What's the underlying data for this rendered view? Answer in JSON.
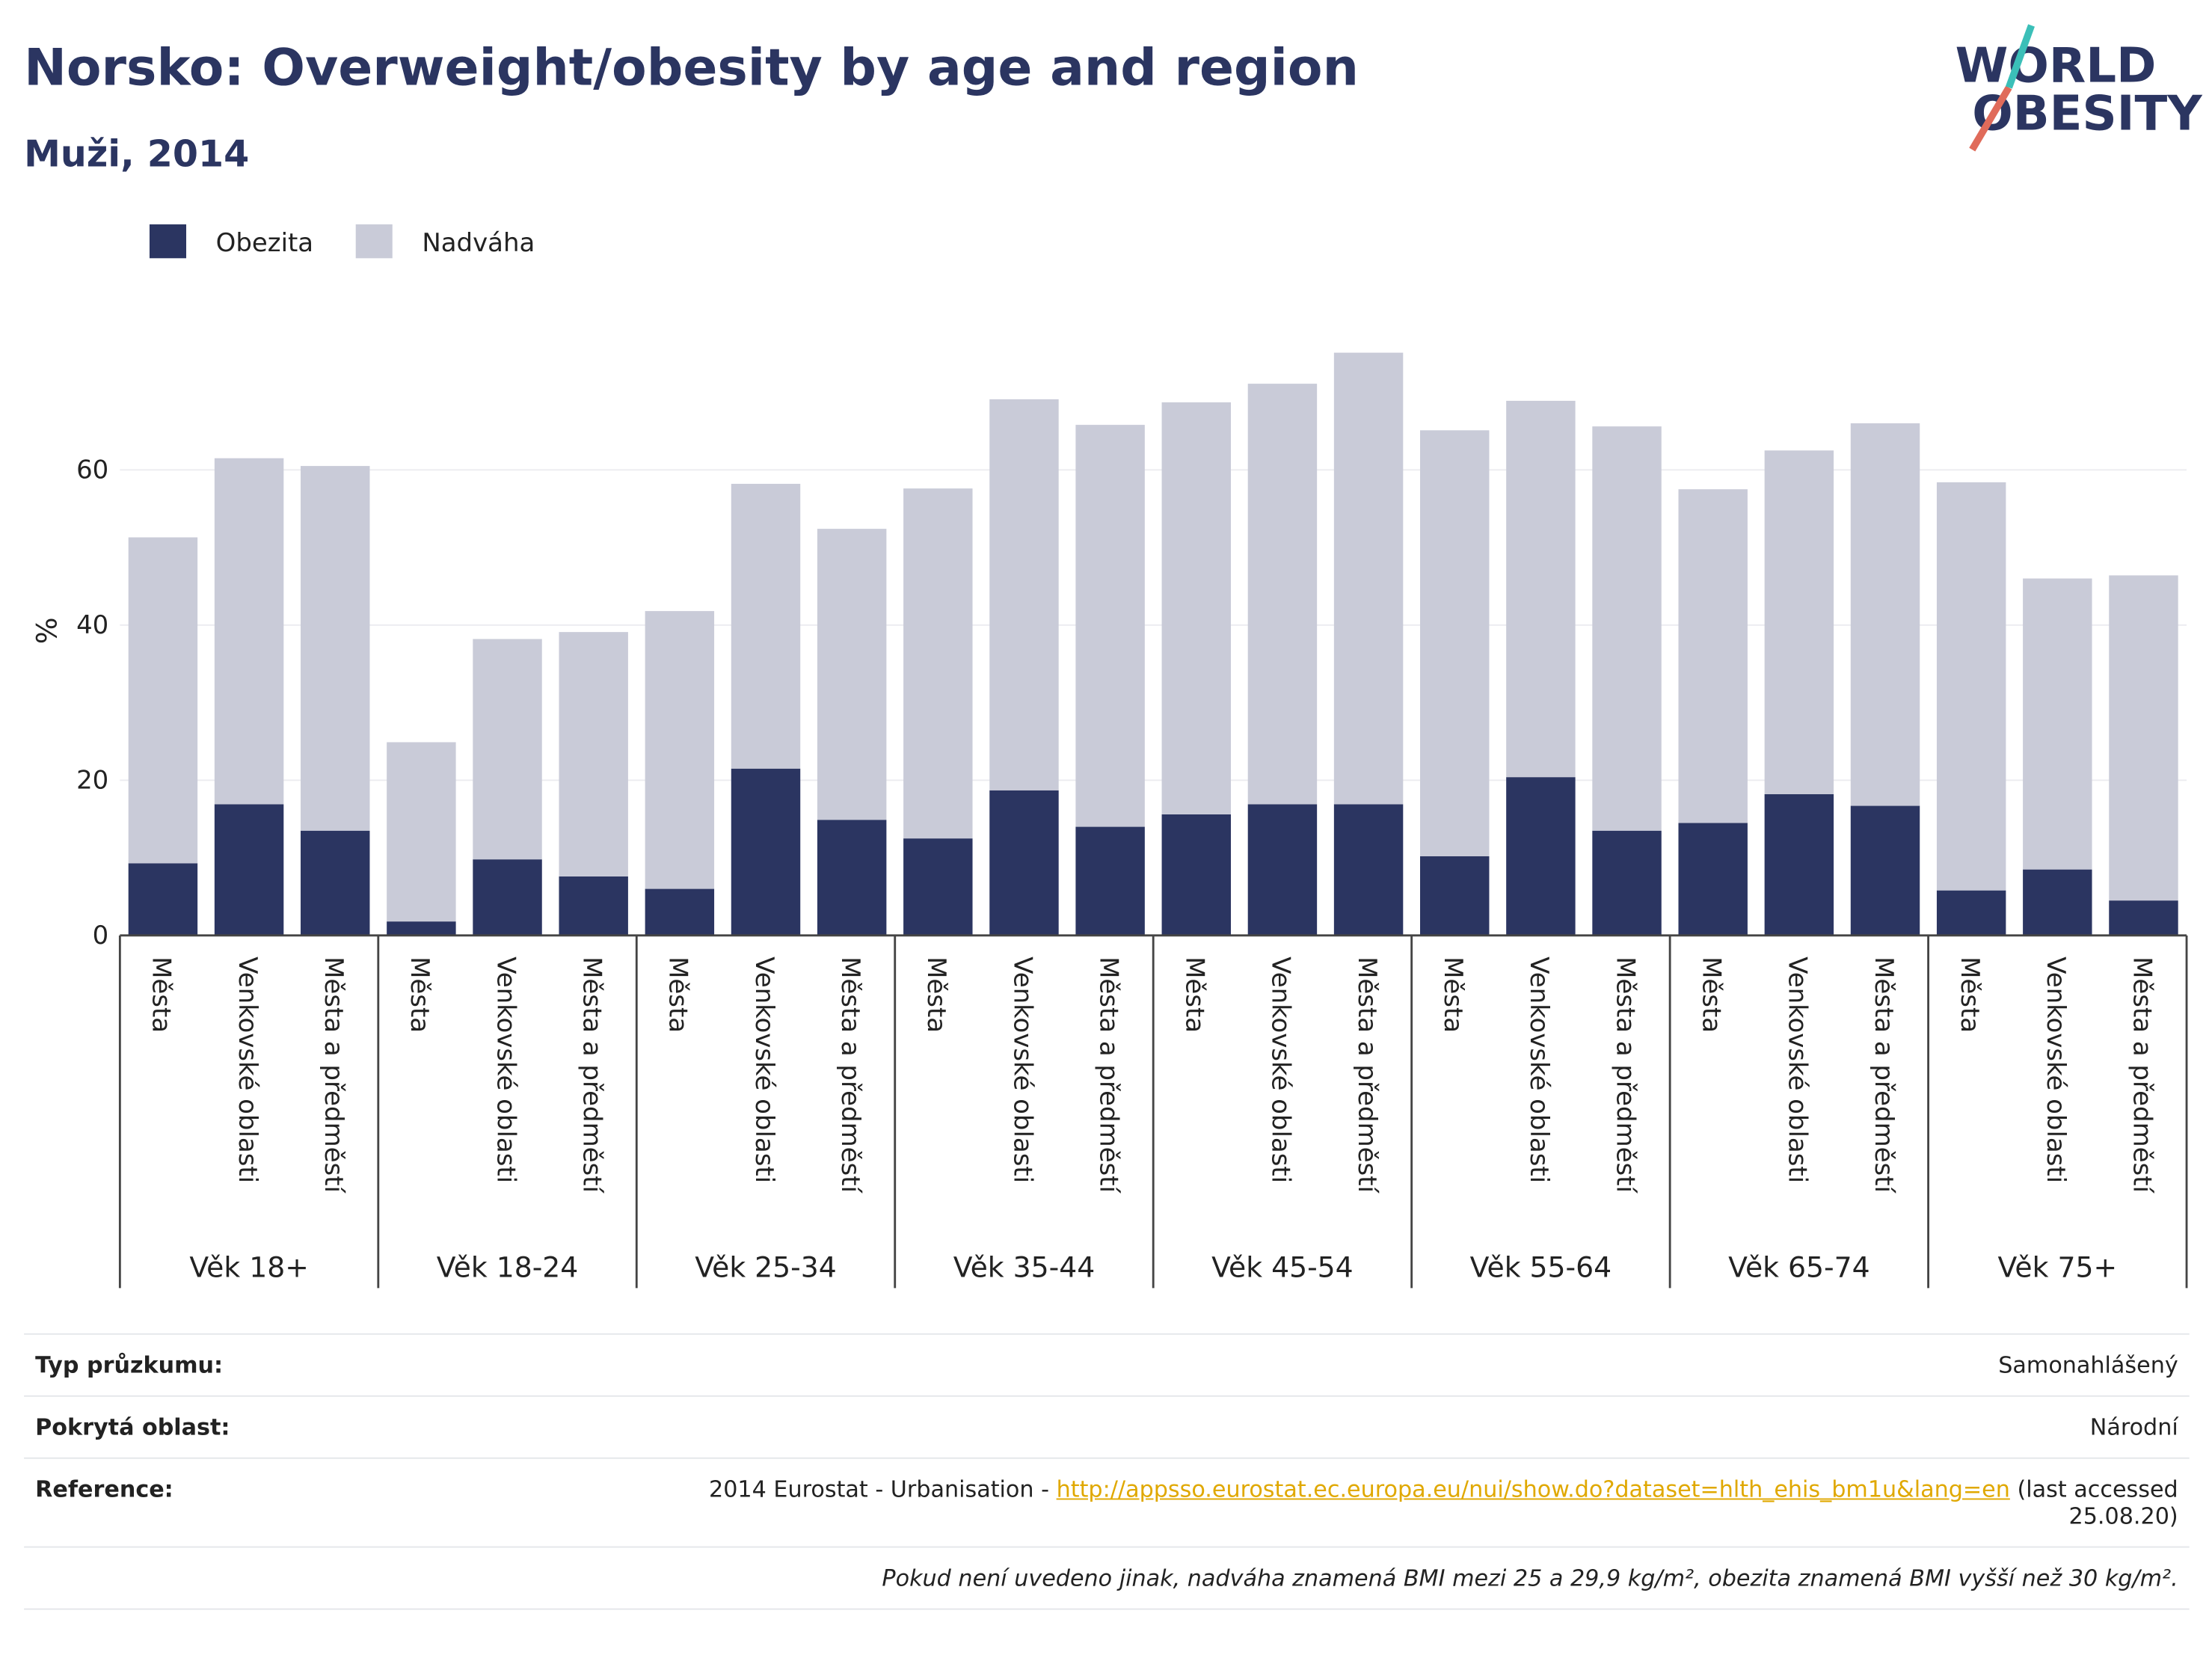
{
  "chart_data": {
    "type": "stacked_bar",
    "title": "Norsko: Overweight/obesity by age and region",
    "subtitle": "Muži, 2014",
    "ylabel": "%",
    "categories": [
      "Města",
      "Venkovské oblasti",
      "Města a předměstí",
      "Města",
      "Venkovské oblasti",
      "Města a předměstí",
      "Města",
      "Venkovské oblasti",
      "Města a předměstí",
      "Města",
      "Venkovské oblasti",
      "Města a předměstí",
      "Města",
      "Venkovské oblasti",
      "Města a předměstí",
      "Města",
      "Venkovské oblasti",
      "Města a předměstí",
      "Města",
      "Venkovské oblasti",
      "Města a předměstí",
      "Města",
      "Venkovské oblasti",
      "Města a předměstí"
    ],
    "groups": [
      "Věk 18+",
      "Věk 18-24",
      "Věk 25-34",
      "Věk 35-44",
      "Věk 45-54",
      "Věk 55-64",
      "Věk 65-74",
      "Věk 75+"
    ],
    "series": [
      {
        "name": "Obezita",
        "color": "#2b3561",
        "values": [
          9.3,
          16.9,
          13.5,
          1.8,
          9.8,
          7.6,
          6.0,
          21.5,
          14.9,
          12.5,
          18.7,
          14.0,
          15.6,
          16.9,
          16.9,
          10.2,
          20.4,
          13.5,
          14.5,
          18.2,
          16.7,
          5.8,
          8.5,
          4.5
        ]
      },
      {
        "name": "Nadváha",
        "color": "#c9cbd8",
        "values": [
          42.0,
          44.6,
          47.0,
          23.1,
          28.4,
          31.5,
          35.8,
          36.7,
          37.5,
          45.1,
          50.4,
          51.8,
          53.1,
          54.2,
          58.2,
          54.9,
          48.5,
          52.1,
          43.0,
          44.3,
          49.3,
          52.6,
          37.5,
          41.9
        ]
      }
    ],
    "ylim": [
      0,
      80
    ],
    "yticks": [
      0,
      20,
      40,
      60
    ],
    "grid": true,
    "legend": "top-left"
  },
  "logo": {
    "line1": "WORLD",
    "line2": "OBESITY"
  },
  "table": {
    "rows": [
      [
        "Typ průzkumu:",
        "Samonahlášený"
      ],
      [
        "Pokrytá oblast:",
        "Národní"
      ]
    ],
    "reference": {
      "label": "Reference:",
      "text": "2014 Eurostat - Urbanisation - ",
      "link": "http://appsso.eurostat.ec.europa.eu/nui/show.do?dataset=hlth_ehis_bm1u&lang=en",
      "note": "(last accessed 25.08.20)"
    },
    "footnote": "Pokud není uvedeno jinak, nadváha znamená BMI mezi 25 a 29,9 kg/m², obezita znamená BMI vyšší než 30 kg/m²."
  }
}
